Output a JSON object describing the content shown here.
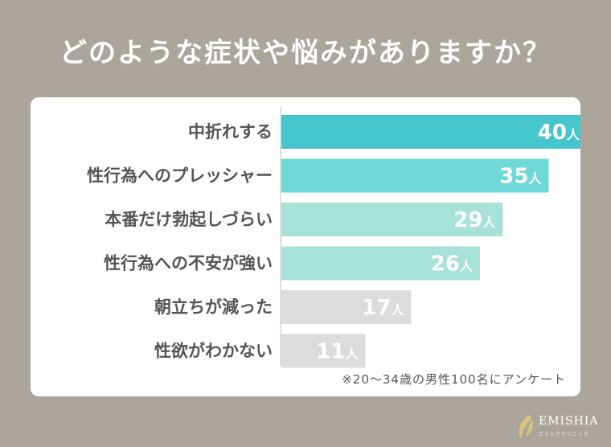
{
  "title": "どのような症状や悩みがありますか？",
  "chart_data": {
    "type": "bar",
    "orientation": "horizontal",
    "title": "どのような症状や悩みがありますか？",
    "categories": [
      "中折れする",
      "性行為へのプレッシャー",
      "本番だけ勃起しづらい",
      "性行為への不安が強い",
      "朝立ちが減った",
      "性欲がわかない"
    ],
    "values": [
      40,
      35,
      29,
      26,
      17,
      11
    ],
    "value_suffix": "人",
    "bar_colors": [
      "#45c6cc",
      "#6fd8d8",
      "#a7e2d8",
      "#a7e2d8",
      "#dcdcdc",
      "#dcdcdc"
    ],
    "xlim": [
      0,
      42
    ]
  },
  "note": "※20〜34歳の男性100名にアンケート",
  "logo": {
    "name": "EMISHIA",
    "sub": "エミシアクリニック"
  },
  "colors": {
    "background": "#aba59b",
    "card": "#ffffff",
    "label_text": "#555555",
    "value_text": "#ffffff"
  }
}
